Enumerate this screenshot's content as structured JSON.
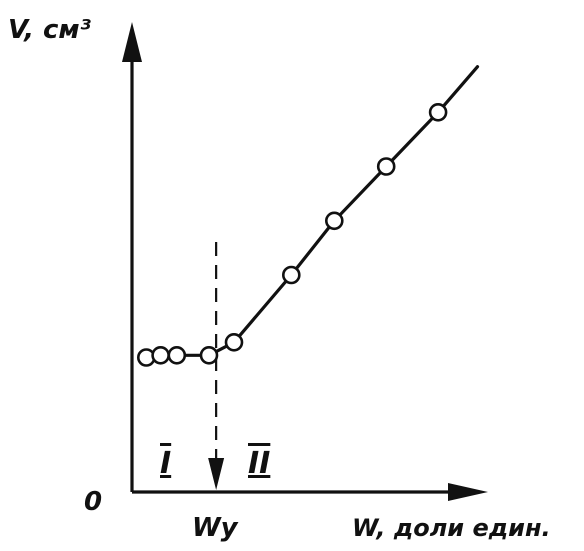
{
  "chart_data": {
    "type": "line",
    "xlabel": "W, доли един.",
    "ylabel": "V, см³",
    "origin_label": "0",
    "x_marker_label": "Wу",
    "x_marker_value": 0.235,
    "regions": [
      "I",
      "II"
    ],
    "xlim": [
      0,
      1
    ],
    "ylim": [
      0,
      1
    ],
    "series": [
      {
        "points": [
          {
            "x": 0.04,
            "y": 0.31
          },
          {
            "x": 0.08,
            "y": 0.315
          },
          {
            "x": 0.125,
            "y": 0.315
          },
          {
            "x": 0.215,
            "y": 0.315
          },
          {
            "x": 0.285,
            "y": 0.345
          },
          {
            "x": 0.445,
            "y": 0.5
          },
          {
            "x": 0.565,
            "y": 0.625
          },
          {
            "x": 0.71,
            "y": 0.75
          },
          {
            "x": 0.855,
            "y": 0.875
          }
        ],
        "line_end": {
          "x": 0.965,
          "y": 0.98
        }
      }
    ]
  }
}
